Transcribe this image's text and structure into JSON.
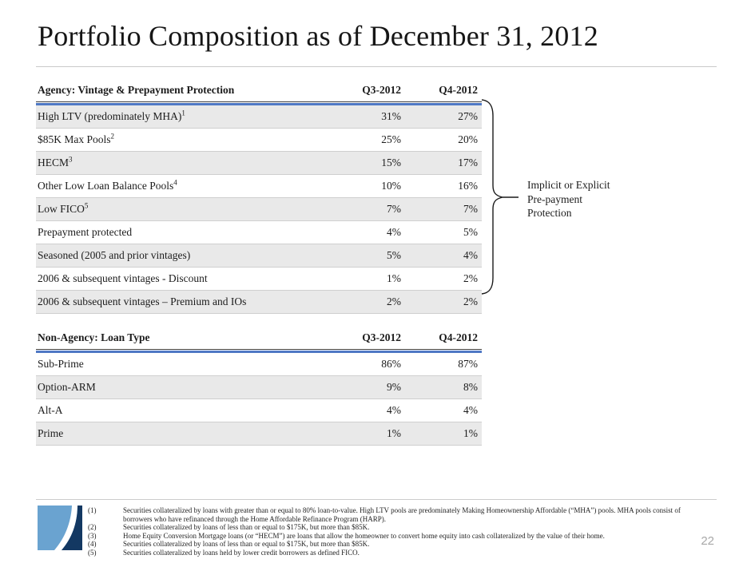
{
  "page": {
    "title": "Portfolio Composition as of December 31, 2012",
    "page_number": "22"
  },
  "colors": {
    "accent_blue": "#4f78c4",
    "row_shade_gray": "#e9e9e9",
    "logo_light_blue": "#6aa3d0",
    "logo_navy": "#133862",
    "page_number_gray": "#a8a8a8"
  },
  "agency_table": {
    "title": "Agency: Vintage & Prepayment Protection",
    "col_q3": "Q3-2012",
    "col_q4": "Q4-2012",
    "rows": [
      {
        "label": "High LTV (predominately MHA)",
        "sup": "1",
        "q3": "31%",
        "q4": "27%"
      },
      {
        "label": "$85K Max Pools",
        "sup": "2",
        "q3": "25%",
        "q4": "20%"
      },
      {
        "label": "HECM",
        "sup": "3",
        "q3": "15%",
        "q4": "17%"
      },
      {
        "label": "Other Low Loan Balance Pools",
        "sup": "4",
        "q3": "10%",
        "q4": "16%"
      },
      {
        "label": "Low FICO",
        "sup": "5",
        "q3": "7%",
        "q4": "7%"
      },
      {
        "label": "Prepayment protected",
        "sup": "",
        "q3": "4%",
        "q4": "5%"
      },
      {
        "label": "Seasoned (2005 and prior vintages)",
        "sup": "",
        "q3": "5%",
        "q4": "4%"
      },
      {
        "label": "2006 & subsequent vintages - Discount",
        "sup": "",
        "q3": "1%",
        "q4": "2%"
      },
      {
        "label": "2006 & subsequent vintages – Premium and IOs",
        "sup": "",
        "q3": "2%",
        "q4": "2%"
      }
    ]
  },
  "non_agency_table": {
    "title": "Non-Agency: Loan Type",
    "col_q3": "Q3-2012",
    "col_q4": "Q4-2012",
    "rows": [
      {
        "label": "Sub-Prime",
        "sup": "",
        "q3": "86%",
        "q4": "87%"
      },
      {
        "label": "Option-ARM",
        "sup": "",
        "q3": "9%",
        "q4": "8%"
      },
      {
        "label": "Alt-A",
        "sup": "",
        "q3": "4%",
        "q4": "4%"
      },
      {
        "label": "Prime",
        "sup": "",
        "q3": "1%",
        "q4": "1%"
      }
    ]
  },
  "annotation": {
    "lines": [
      "Implicit or Explicit",
      "Pre-payment",
      "Protection"
    ]
  },
  "footnotes": [
    {
      "num": "(1)",
      "text": "Securities collateralized by loans with greater than or equal to 80% loan-to-value. High LTV pools are predominately Making Homeownership Affordable (“MHA”) pools. MHA pools consist of borrowers who have refinanced through the Home Affordable Refinance Program (HARP)."
    },
    {
      "num": "(2)",
      "text": "Securities collateralized by loans of less than or equal to $175K, but more than $85K."
    },
    {
      "num": "(3)",
      "text": "Home Equity Conversion Mortgage loans (or “HECM”) are loans that allow the homeowner to convert home equity into cash collateralized by the value of their home."
    },
    {
      "num": "(4)",
      "text": "Securities collateralized by loans of less than or equal to $175K, but more than $85K."
    },
    {
      "num": "(5)",
      "text": "Securities collateralized by loans held by lower credit borrowers as defined FICO."
    }
  ]
}
